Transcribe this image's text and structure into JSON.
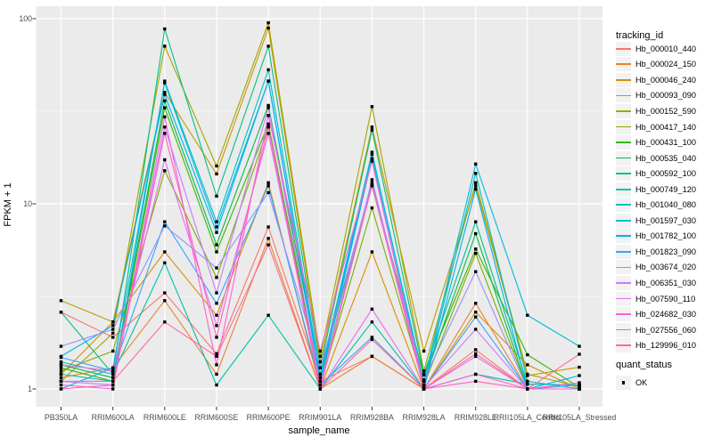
{
  "chart_data": {
    "type": "line",
    "title": "",
    "xlabel": "sample_name",
    "ylabel": "FPKM + 1",
    "y_scale": "log10",
    "y_ticks": [
      1,
      10,
      100
    ],
    "y_tick_labels": [
      "1",
      "10",
      "100"
    ],
    "y_minor_ticks": [
      3.1623,
      31.623
    ],
    "ylim": [
      0.79,
      120
    ],
    "grid": true,
    "legend_position": "right",
    "legend_title": "tracking_id",
    "quant_legend": {
      "title": "quant_status",
      "label": "OK",
      "marker": "filled-square",
      "color": "#000000"
    },
    "point_marker": "filled-square",
    "point_color": "#000000",
    "panel_background": "#ebebeb",
    "grid_color": "#ffffff",
    "categories": [
      "PB350LA",
      "RRIM600LA",
      "RRIM600LE",
      "RRIM600SE",
      "RRIM600PE",
      "RRIM901LA",
      "RRIM928BA",
      "RRIM928LA",
      "RRIM928LE",
      "RRII105LA_Control",
      "RRII105LA_Stressed"
    ],
    "series": [
      {
        "name": "Hb_000010_440",
        "color": "#F8766D",
        "values": [
          2.6,
          1.9,
          3.3,
          1.55,
          7.5,
          1.1,
          1.5,
          1.0,
          1.63,
          1.0,
          1.0
        ]
      },
      {
        "name": "Hb_000024_150",
        "color": "#EA8331",
        "values": [
          1.15,
          1.3,
          3.0,
          1.2,
          6.5,
          1.0,
          1.5,
          1.0,
          2.9,
          1.0,
          1.0
        ]
      },
      {
        "name": "Hb_000046_240",
        "color": "#D89000",
        "values": [
          1.2,
          2.3,
          5.5,
          2.5,
          13.0,
          1.0,
          5.5,
          1.0,
          2.6,
          1.35,
          1.0
        ]
      },
      {
        "name": "Hb_000093_090",
        "color": "#C09B00",
        "values": [
          3.0,
          2.3,
          40.0,
          14.5,
          89.0,
          1.4,
          26.0,
          1.6,
          12.5,
          1.18,
          1.31
        ]
      },
      {
        "name": "Hb_000152_590",
        "color": "#A3A500",
        "values": [
          1.1,
          2.0,
          71.0,
          16.0,
          95.0,
          1.5,
          33.5,
          1.25,
          13.0,
          1.2,
          1.03
        ]
      },
      {
        "name": "Hb_000417_140",
        "color": "#7CAE00",
        "values": [
          1.25,
          1.6,
          15.1,
          4.0,
          26.0,
          1.05,
          9.5,
          1.05,
          5.4,
          1.0,
          1.0
        ]
      },
      {
        "name": "Hb_000431_100",
        "color": "#39B600",
        "values": [
          1.3,
          1.1,
          33.0,
          5.5,
          27.0,
          1.1,
          12.5,
          1.19,
          5.7,
          1.53,
          1.02
        ]
      },
      {
        "name": "Hb_000535_040",
        "color": "#00BB4E",
        "values": [
          1.35,
          1.15,
          36.0,
          6.0,
          34.0,
          1.2,
          13.0,
          1.1,
          6.9,
          1.0,
          1.0
        ]
      },
      {
        "name": "Hb_000592_100",
        "color": "#00C087",
        "values": [
          2.6,
          1.2,
          88.0,
          11.0,
          71.0,
          1.3,
          25.0,
          1.2,
          8.0,
          1.06,
          1.05
        ]
      },
      {
        "name": "Hb_000749_120",
        "color": "#00C1A7",
        "values": [
          1.4,
          1.2,
          4.8,
          1.05,
          2.5,
          1.0,
          2.3,
          1.0,
          1.2,
          1.06,
          1.05
        ]
      },
      {
        "name": "Hb_001040_080",
        "color": "#00BFC4",
        "values": [
          1.2,
          1.1,
          46.0,
          8.0,
          53.0,
          1.2,
          19.0,
          1.05,
          14.6,
          1.1,
          1.0
        ]
      },
      {
        "name": "Hb_001597_030",
        "color": "#00BAE0",
        "values": [
          1.0,
          1.3,
          45.0,
          7.5,
          46.0,
          1.15,
          18.5,
          1.1,
          16.4,
          2.5,
          1.7
        ]
      },
      {
        "name": "Hb_001782_100",
        "color": "#00B0F6",
        "values": [
          1.5,
          2.2,
          39.0,
          7.0,
          46.0,
          1.1,
          17.5,
          1.0,
          12.0,
          1.0,
          1.18
        ]
      },
      {
        "name": "Hb_001823_090",
        "color": "#35A2FF",
        "values": [
          1.48,
          1.25,
          8.0,
          2.9,
          12.5,
          1.05,
          1.9,
          1.0,
          2.45,
          1.0,
          1.05
        ]
      },
      {
        "name": "Hb_003674_020",
        "color": "#9590FF",
        "values": [
          1.7,
          2.1,
          7.6,
          4.5,
          11.5,
          1.3,
          12.6,
          1.12,
          4.3,
          1.0,
          1.0
        ]
      },
      {
        "name": "Hb_006351_030",
        "color": "#C77CFF",
        "values": [
          1.1,
          1.05,
          26.0,
          3.3,
          33.0,
          1.05,
          13.5,
          1.02,
          2.1,
          1.0,
          1.0
        ]
      },
      {
        "name": "Hb_007590_110",
        "color": "#E76BF3",
        "values": [
          1.35,
          1.25,
          17.3,
          2.2,
          24.0,
          1.0,
          2.7,
          1.0,
          1.5,
          1.0,
          1.0
        ]
      },
      {
        "name": "Hb_024682_030",
        "color": "#FA62DB",
        "values": [
          1.05,
          1.0,
          29.5,
          1.35,
          30.0,
          1.6,
          17.0,
          1.0,
          1.2,
          1.0,
          1.0
        ]
      },
      {
        "name": "Hb_027556_060",
        "color": "#FF62BC",
        "values": [
          1.0,
          1.05,
          24.0,
          1.9,
          26.0,
          1.0,
          12.6,
          1.0,
          1.1,
          1.0,
          1.08
        ]
      },
      {
        "name": "Hb_129996_010",
        "color": "#FF6A98",
        "values": [
          1.1,
          1.1,
          2.3,
          1.5,
          6.0,
          1.0,
          1.85,
          1.0,
          1.55,
          1.0,
          1.54
        ]
      }
    ]
  }
}
